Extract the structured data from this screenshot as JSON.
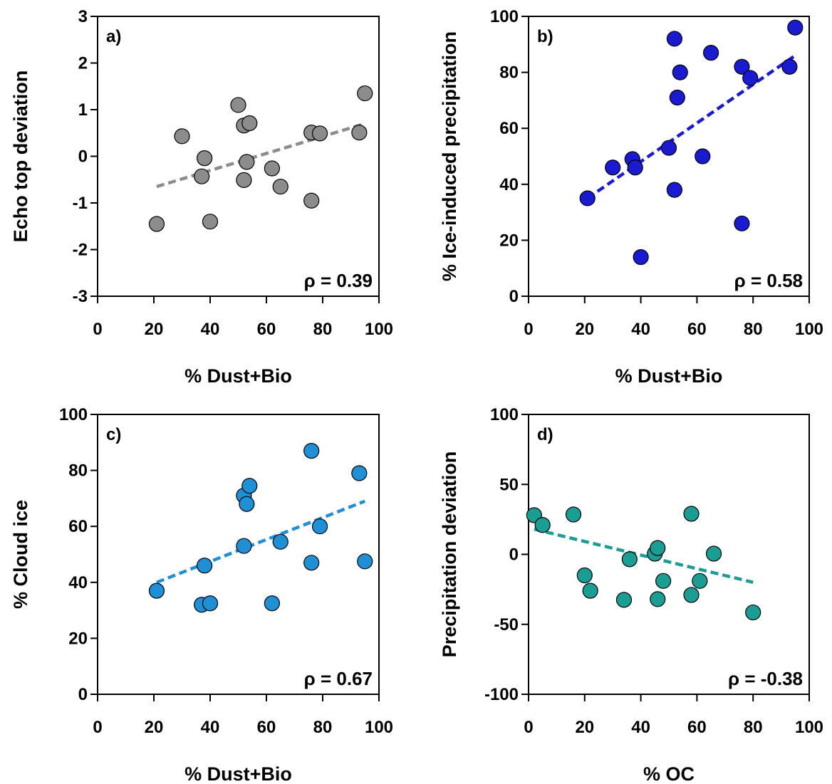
{
  "chart_data": [
    {
      "type": "scatter",
      "panel_label": "a)",
      "xlabel": "% Dust+Bio",
      "ylabel": "Echo top deviation",
      "xlim": [
        0,
        100
      ],
      "ylim": [
        -3,
        3
      ],
      "xticks": [
        0,
        20,
        40,
        60,
        80,
        100
      ],
      "yticks": [
        -3,
        -2,
        -1,
        0,
        1,
        2,
        3
      ],
      "annotation": "ρ = 0.39",
      "color": "#8c8c8c",
      "grid": false,
      "points": [
        {
          "x": 21,
          "y": -1.45
        },
        {
          "x": 30,
          "y": 0.43
        },
        {
          "x": 37,
          "y": -0.43
        },
        {
          "x": 38,
          "y": -0.04
        },
        {
          "x": 40,
          "y": -1.4
        },
        {
          "x": 50,
          "y": 1.1
        },
        {
          "x": 52,
          "y": -0.51
        },
        {
          "x": 52,
          "y": 0.66
        },
        {
          "x": 53,
          "y": -0.12
        },
        {
          "x": 54,
          "y": 0.71
        },
        {
          "x": 62,
          "y": -0.26
        },
        {
          "x": 65,
          "y": -0.65
        },
        {
          "x": 76,
          "y": -0.95
        },
        {
          "x": 76,
          "y": 0.51
        },
        {
          "x": 79,
          "y": 0.49
        },
        {
          "x": 93,
          "y": 0.51
        },
        {
          "x": 95,
          "y": 1.35
        }
      ],
      "trendline": {
        "x": [
          21,
          95
        ],
        "y": [
          -0.65,
          0.7
        ]
      }
    },
    {
      "type": "scatter",
      "panel_label": "b)",
      "xlabel": "% Dust+Bio",
      "ylabel": "% Ice-induced precipitation",
      "xlim": [
        0,
        100
      ],
      "ylim": [
        0,
        100
      ],
      "xticks": [
        0,
        20,
        40,
        60,
        80,
        100
      ],
      "yticks": [
        0,
        20,
        40,
        60,
        80,
        100
      ],
      "annotation": "ρ = 0.58",
      "color": "#1a1ad0",
      "grid": false,
      "points": [
        {
          "x": 21,
          "y": 35
        },
        {
          "x": 30,
          "y": 46
        },
        {
          "x": 37,
          "y": 49
        },
        {
          "x": 38,
          "y": 46
        },
        {
          "x": 40,
          "y": 14
        },
        {
          "x": 50,
          "y": 53
        },
        {
          "x": 52,
          "y": 38
        },
        {
          "x": 52,
          "y": 92
        },
        {
          "x": 53,
          "y": 71
        },
        {
          "x": 54,
          "y": 80
        },
        {
          "x": 62,
          "y": 50
        },
        {
          "x": 65,
          "y": 87
        },
        {
          "x": 76,
          "y": 26
        },
        {
          "x": 76,
          "y": 82
        },
        {
          "x": 79,
          "y": 78
        },
        {
          "x": 93,
          "y": 82
        },
        {
          "x": 95,
          "y": 96
        }
      ],
      "trendline": {
        "x": [
          21,
          95
        ],
        "y": [
          35,
          86
        ]
      }
    },
    {
      "type": "scatter",
      "panel_label": "c)",
      "xlabel": "% Dust+Bio",
      "ylabel": "% Cloud ice",
      "xlim": [
        0,
        100
      ],
      "ylim": [
        0,
        100
      ],
      "xticks": [
        0,
        20,
        40,
        60,
        80,
        100
      ],
      "yticks": [
        0,
        20,
        40,
        60,
        80,
        100
      ],
      "annotation": "ρ = 0.67",
      "color": "#1f8fd6",
      "grid": false,
      "points": [
        {
          "x": 21,
          "y": 37
        },
        {
          "x": 37,
          "y": 32
        },
        {
          "x": 38,
          "y": 46
        },
        {
          "x": 40,
          "y": 32.5
        },
        {
          "x": 52,
          "y": 71
        },
        {
          "x": 52,
          "y": 53
        },
        {
          "x": 53,
          "y": 68
        },
        {
          "x": 54,
          "y": 74.5
        },
        {
          "x": 62,
          "y": 32.5
        },
        {
          "x": 65,
          "y": 54.5
        },
        {
          "x": 76,
          "y": 47
        },
        {
          "x": 76,
          "y": 87
        },
        {
          "x": 79,
          "y": 60
        },
        {
          "x": 93,
          "y": 79
        },
        {
          "x": 95,
          "y": 47.5
        }
      ],
      "trendline": {
        "x": [
          21,
          95
        ],
        "y": [
          40,
          69
        ]
      }
    },
    {
      "type": "scatter",
      "panel_label": "d)",
      "xlabel": "% OC",
      "ylabel": "Precipitation deviation",
      "xlim": [
        0,
        100
      ],
      "ylim": [
        -100,
        100
      ],
      "xticks": [
        0,
        20,
        40,
        60,
        80,
        100
      ],
      "yticks": [
        -100,
        -50,
        0,
        50,
        100
      ],
      "annotation": "ρ = -0.38",
      "color": "#1a9e94",
      "grid": false,
      "points": [
        {
          "x": 2,
          "y": 28
        },
        {
          "x": 5,
          "y": 21
        },
        {
          "x": 16,
          "y": 28.5
        },
        {
          "x": 20,
          "y": -15
        },
        {
          "x": 22,
          "y": -26
        },
        {
          "x": 34,
          "y": -32.5
        },
        {
          "x": 36,
          "y": -3.5
        },
        {
          "x": 45,
          "y": 0.5
        },
        {
          "x": 46,
          "y": 4.5
        },
        {
          "x": 46,
          "y": -32
        },
        {
          "x": 48,
          "y": -19
        },
        {
          "x": 58,
          "y": 29
        },
        {
          "x": 58,
          "y": -29
        },
        {
          "x": 61,
          "y": -19
        },
        {
          "x": 66,
          "y": 0.5
        },
        {
          "x": 80,
          "y": -41.5
        }
      ],
      "trendline": {
        "x": [
          2,
          80
        ],
        "y": [
          18,
          -20
        ]
      }
    }
  ]
}
